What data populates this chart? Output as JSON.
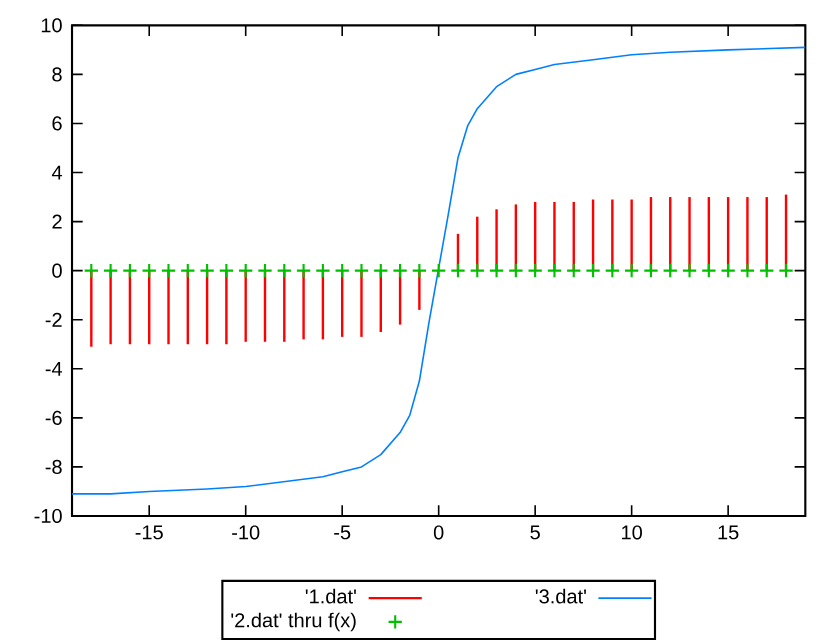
{
  "chart_data": {
    "type": "line",
    "xlim": [
      -19,
      19
    ],
    "ylim": [
      -10,
      10
    ],
    "xticks": [
      -15,
      -10,
      -5,
      0,
      5,
      10,
      15
    ],
    "yticks": [
      -10,
      -8,
      -6,
      -4,
      -2,
      0,
      2,
      4,
      6,
      8,
      10
    ],
    "legend": "bottom",
    "grid": false,
    "series": [
      {
        "name": "'1.dat'",
        "type": "bar",
        "color": "#ff0000",
        "x": [
          -18,
          -17,
          -16,
          -15,
          -14,
          -13,
          -12,
          -11,
          -10,
          -9,
          -8,
          -7,
          -6,
          -5,
          -4,
          -3,
          -2,
          -1,
          0,
          1,
          2,
          3,
          4,
          5,
          6,
          7,
          8,
          9,
          10,
          11,
          12,
          13,
          14,
          15,
          16,
          17,
          18
        ],
        "values": [
          -3.1,
          -3.0,
          -3.0,
          -3.0,
          -3.0,
          -3.0,
          -3.0,
          -3.0,
          -2.9,
          -2.9,
          -2.9,
          -2.8,
          -2.8,
          -2.7,
          -2.7,
          -2.5,
          -2.2,
          -1.6,
          0,
          1.5,
          2.2,
          2.5,
          2.7,
          2.8,
          2.8,
          2.8,
          2.9,
          2.9,
          2.9,
          3.0,
          3.0,
          3.0,
          3.0,
          3.0,
          3.0,
          3.0,
          3.1
        ]
      },
      {
        "name": "'3.dat'",
        "color": "#0080ff",
        "line_style": "solid",
        "x": [
          -19,
          -17,
          -15,
          -12,
          -10,
          -8,
          -6,
          -5,
          -4,
          -3,
          -2,
          -1.5,
          -1,
          -0.5,
          0,
          0.5,
          1,
          1.5,
          2,
          3,
          4,
          5,
          6,
          8,
          10,
          12,
          15,
          19
        ],
        "values": [
          -9.1,
          -9.1,
          -9.0,
          -8.9,
          -8.8,
          -8.6,
          -8.4,
          -8.2,
          -8.0,
          -7.5,
          -6.6,
          -5.9,
          -4.5,
          -2.1,
          0.1,
          2.3,
          4.6,
          5.9,
          6.6,
          7.5,
          8.0,
          8.2,
          8.4,
          8.6,
          8.8,
          8.9,
          9.0,
          9.1
        ]
      },
      {
        "name": "'2.dat' thru f(x)",
        "type": "scatter",
        "color": "#00c000",
        "marker": "cross",
        "x": [
          -18,
          -17,
          -16,
          -15,
          -14,
          -13,
          -12,
          -11,
          -10,
          -9,
          -8,
          -7,
          -6,
          -5,
          -4,
          -3,
          -2,
          -1,
          0,
          1,
          2,
          3,
          4,
          5,
          6,
          7,
          8,
          9,
          10,
          11,
          12,
          13,
          14,
          15,
          16,
          17,
          18
        ],
        "values": [
          0,
          0,
          0,
          0,
          0,
          0,
          0,
          0,
          0,
          0,
          0,
          0,
          0,
          0,
          0,
          0,
          0,
          0,
          0,
          0,
          0,
          0,
          0,
          0,
          0,
          0,
          0,
          0,
          0,
          0,
          0,
          0,
          0,
          0,
          0,
          0,
          0
        ]
      }
    ]
  }
}
